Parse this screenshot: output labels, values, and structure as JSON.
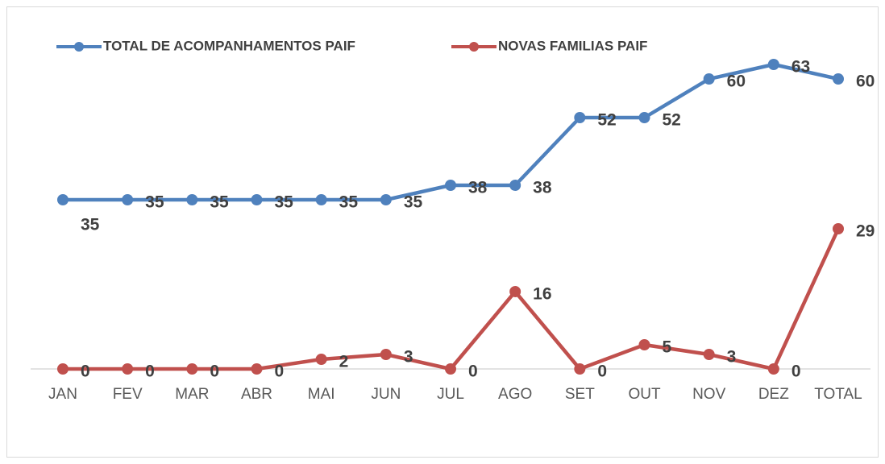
{
  "chart_data": {
    "type": "line",
    "categories": [
      "JAN",
      "FEV",
      "MAR",
      "ABR",
      "MAI",
      "JUN",
      "JUL",
      "AGO",
      "SET",
      "OUT",
      "NOV",
      "DEZ",
      "TOTAL"
    ],
    "series": [
      {
        "name": "TOTAL DE ACOMPANHAMENTOS PAIF",
        "color": "#4f81bd",
        "values": [
          35,
          35,
          35,
          35,
          35,
          35,
          38,
          38,
          52,
          52,
          60,
          63,
          60
        ]
      },
      {
        "name": "NOVAS FAMILIAS PAIF",
        "color": "#c0504d",
        "values": [
          0,
          0,
          0,
          0,
          2,
          3,
          0,
          16,
          0,
          5,
          3,
          0,
          29
        ]
      }
    ],
    "ylim": [
      0,
      70
    ],
    "grid": false,
    "legend": "top"
  }
}
